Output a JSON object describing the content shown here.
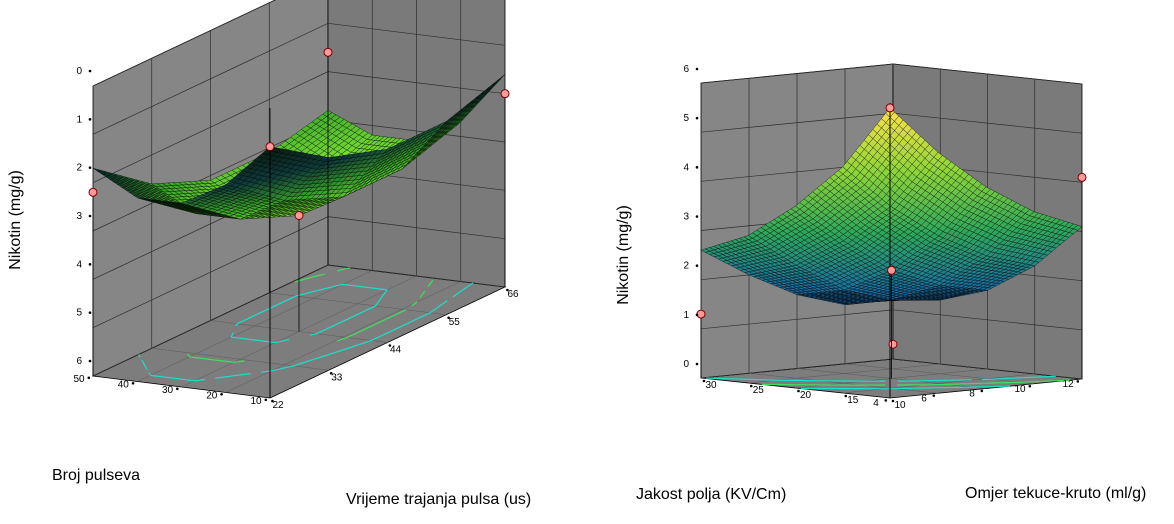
{
  "chart_data": [
    {
      "type": "surface",
      "title": "",
      "zlabel": "Nikotin (mg/g)",
      "xlabel": "Vrijeme trajanja pulsa (us)",
      "ylabel": "Broj pulseva",
      "x_ticks": [
        "22",
        "33",
        "44",
        "55",
        "66"
      ],
      "y_ticks": [
        "10",
        "20",
        "30",
        "40",
        "50"
      ],
      "z_ticks": [
        "0",
        "1",
        "2",
        "3",
        "4",
        "5",
        "6"
      ],
      "xlim": [
        22,
        66
      ],
      "ylim": [
        10,
        50
      ],
      "zlim": [
        0,
        6
      ],
      "surface_grid": {
        "x": [
          22,
          33,
          44,
          55,
          66
        ],
        "y": [
          10,
          20,
          30,
          40,
          50
        ],
        "z": [
          [
            0.8,
            1.6,
            2.0,
            2.0,
            1.6
          ],
          [
            1.7,
            2.6,
            3.1,
            3.1,
            2.7
          ],
          [
            2.2,
            3.1,
            3.6,
            3.6,
            3.2
          ],
          [
            2.2,
            3.1,
            3.6,
            3.6,
            3.2
          ],
          [
            1.7,
            2.6,
            3.1,
            3.1,
            2.8
          ]
        ]
      },
      "design_points": [
        {
          "x": 22,
          "y": 50,
          "z": 2.2
        },
        {
          "x": 66,
          "y": 50,
          "z": 1.6
        },
        {
          "x": 66,
          "y": 10,
          "z": 2.0
        },
        {
          "x": 22,
          "y": 10,
          "z": 0.8
        },
        {
          "x": 44,
          "y": 30,
          "z": 3.6
        }
      ],
      "colors": {
        "surface_high": "#7cf02a",
        "surface_low": "#0a1f12",
        "contour": "#19e0c8",
        "contour2": "#3ee060",
        "wall": "#808080",
        "grid": "#2e2e2e",
        "point": "#ff9a9a"
      }
    },
    {
      "type": "surface",
      "title": "",
      "zlabel": "Nikotin (mg/g)",
      "xlabel": "Jakost polja (KV/Cm)",
      "ylabel": "Omjer tekuce-kruto (ml/g)",
      "x_ticks": [
        "4",
        "6",
        "8",
        "10",
        "12"
      ],
      "y_ticks": [
        "10",
        "15",
        "20",
        "25",
        "30"
      ],
      "z_ticks": [
        "0",
        "1",
        "2",
        "3",
        "4",
        "5",
        "6"
      ],
      "xlim": [
        4,
        12
      ],
      "ylim": [
        10,
        30
      ],
      "zlim": [
        0,
        6
      ],
      "surface_grid": {
        "x": [
          4,
          6,
          8,
          10,
          12
        ],
        "y": [
          10,
          15,
          20,
          25,
          30
        ],
        "z": [
          [
            5.9,
            4.9,
            4.1,
            3.5,
            3.1
          ],
          [
            4.6,
            3.7,
            3.0,
            2.5,
            2.2
          ],
          [
            3.7,
            2.9,
            2.2,
            1.8,
            1.6
          ],
          [
            3.0,
            2.3,
            1.7,
            1.4,
            1.3
          ],
          [
            2.6,
            2.0,
            1.5,
            1.2,
            1.3
          ]
        ]
      },
      "design_points": [
        {
          "x": 4,
          "y": 10,
          "z": 5.9
        },
        {
          "x": 12,
          "y": 10,
          "z": 4.1
        },
        {
          "x": 4,
          "y": 30,
          "z": 1.3
        },
        {
          "x": 12,
          "y": 30,
          "z": 0.3
        },
        {
          "x": 8,
          "y": 20,
          "z": 2.2
        }
      ],
      "colors": {
        "surface_high": "#ffe14a",
        "surface_mid": "#4cc93a",
        "surface_low": "#0a1a8a",
        "contour": "#19e0c8",
        "contour2": "#3ee060",
        "wall": "#808080",
        "grid": "#2e2e2e",
        "point": "#ff9a9a"
      }
    }
  ]
}
